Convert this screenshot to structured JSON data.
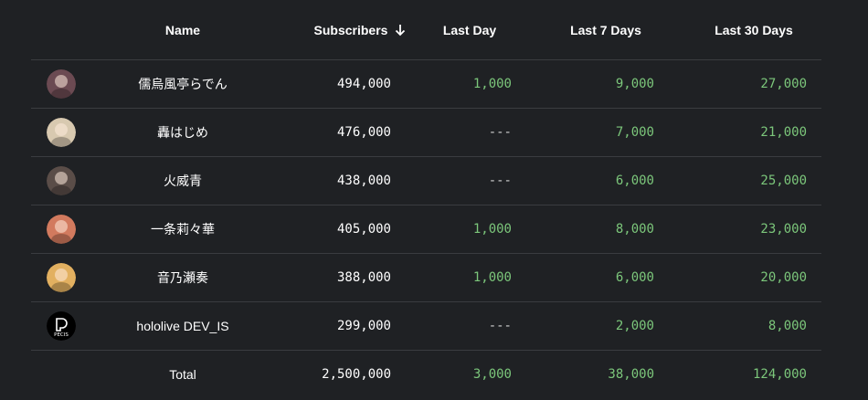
{
  "headers": {
    "name": "Name",
    "subscribers": "Subscribers",
    "last_day": "Last Day",
    "last_7_days": "Last 7 Days",
    "last_30_days": "Last 30 Days",
    "sort_icon": "arrow-down-icon"
  },
  "rows": [
    {
      "name": "儒烏風亭らでん",
      "subscribers": "494,000",
      "last_day": "1,000",
      "last_7_days": "9,000",
      "last_30_days": "27,000",
      "avatar_color": "#6b4a52"
    },
    {
      "name": "轟はじめ",
      "subscribers": "476,000",
      "last_day": "---",
      "last_7_days": "7,000",
      "last_30_days": "21,000",
      "avatar_color": "#d8c9b0"
    },
    {
      "name": "火威青",
      "subscribers": "438,000",
      "last_day": "---",
      "last_7_days": "6,000",
      "last_30_days": "25,000",
      "avatar_color": "#5a4d48"
    },
    {
      "name": "一条莉々華",
      "subscribers": "405,000",
      "last_day": "1,000",
      "last_7_days": "8,000",
      "last_30_days": "23,000",
      "avatar_color": "#d27a5e"
    },
    {
      "name": "音乃瀬奏",
      "subscribers": "388,000",
      "last_day": "1,000",
      "last_7_days": "6,000",
      "last_30_days": "20,000",
      "avatar_color": "#e2b060"
    },
    {
      "name": "hololive DEV_IS",
      "subscribers": "299,000",
      "last_day": "---",
      "last_7_days": "2,000",
      "last_30_days": "8,000",
      "avatar_color": "#000000",
      "logo_text": "PECIS"
    }
  ],
  "total": {
    "label": "Total",
    "subscribers": "2,500,000",
    "last_day": "3,000",
    "last_7_days": "38,000",
    "last_30_days": "124,000"
  },
  "colors": {
    "background": "#1f2124",
    "positive": "#7cc77b",
    "divider": "#3a3c40"
  }
}
